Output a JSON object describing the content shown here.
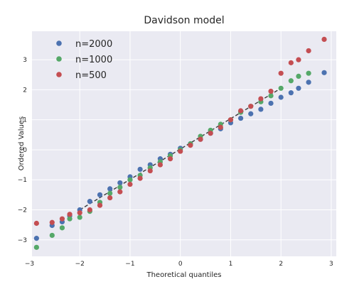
{
  "chart_data": {
    "type": "scatter",
    "title": "Davidson model",
    "xlabel": "Theoretical quantiles",
    "ylabel": "Ordered Values",
    "xlim": [
      -2.95,
      3.1
    ],
    "ylim": [
      -3.55,
      3.95
    ],
    "xticks": [
      -3,
      -2,
      -1,
      0,
      1,
      2,
      3
    ],
    "yticks": [
      -3,
      -2,
      -1,
      0,
      1,
      2,
      3
    ],
    "tick_labels_x": [
      "−3",
      "−2",
      "−1",
      "0",
      "1",
      "2",
      "3"
    ],
    "tick_labels_y": [
      "−3",
      "−2",
      "−1",
      "0",
      "1",
      "2",
      "3"
    ],
    "grid": true,
    "legend_position": "top-left",
    "reference_line": {
      "style": "dashed",
      "color": "#3a3a3a",
      "x": [
        -2.0,
        2.0
      ],
      "y": [
        -2.0,
        2.05
      ]
    },
    "series": [
      {
        "name": "n=2000",
        "color": "#4c72b0",
        "x": [
          -2.86,
          -2.55,
          -2.35,
          -2.2,
          -2.0,
          -1.8,
          -1.6,
          -1.4,
          -1.2,
          -1.0,
          -0.8,
          -0.6,
          -0.4,
          -0.2,
          0.0,
          0.2,
          0.4,
          0.6,
          0.8,
          1.0,
          1.2,
          1.4,
          1.6,
          1.8,
          2.0,
          2.2,
          2.35,
          2.55,
          2.86
        ],
        "y": [
          -2.95,
          -2.52,
          -2.4,
          -2.2,
          -2.0,
          -1.72,
          -1.5,
          -1.3,
          -1.1,
          -0.9,
          -0.65,
          -0.5,
          -0.3,
          -0.15,
          0.05,
          0.2,
          0.35,
          0.55,
          0.7,
          0.9,
          1.05,
          1.2,
          1.35,
          1.55,
          1.75,
          1.9,
          2.05,
          2.25,
          2.57
        ]
      },
      {
        "name": "n=1000",
        "color": "#55a868",
        "x": [
          -2.86,
          -2.55,
          -2.35,
          -2.2,
          -2.0,
          -1.8,
          -1.6,
          -1.4,
          -1.2,
          -1.0,
          -0.8,
          -0.6,
          -0.4,
          -0.2,
          0.0,
          0.2,
          0.4,
          0.6,
          0.8,
          1.0,
          1.2,
          1.4,
          1.6,
          1.8,
          2.0,
          2.2,
          2.35,
          2.55
        ],
        "y": [
          -3.25,
          -2.85,
          -2.6,
          -2.3,
          -2.25,
          -2.05,
          -1.75,
          -1.45,
          -1.25,
          -1.0,
          -0.85,
          -0.6,
          -0.4,
          -0.2,
          0.0,
          0.2,
          0.45,
          0.65,
          0.85,
          1.0,
          1.25,
          1.45,
          1.6,
          1.8,
          2.05,
          2.3,
          2.45,
          2.55
        ]
      },
      {
        "name": "n=500",
        "color": "#c44e52",
        "x": [
          -2.86,
          -2.55,
          -2.35,
          -2.2,
          -2.0,
          -1.8,
          -1.6,
          -1.4,
          -1.2,
          -1.0,
          -0.8,
          -0.6,
          -0.4,
          -0.2,
          0.0,
          0.2,
          0.4,
          0.6,
          0.8,
          1.0,
          1.2,
          1.4,
          1.6,
          1.8,
          2.0,
          2.2,
          2.35,
          2.55,
          2.86
        ],
        "y": [
          -2.45,
          -2.42,
          -2.3,
          -2.15,
          -2.1,
          -2.0,
          -1.85,
          -1.6,
          -1.4,
          -1.15,
          -0.95,
          -0.7,
          -0.5,
          -0.3,
          -0.05,
          0.15,
          0.35,
          0.55,
          0.75,
          1.0,
          1.3,
          1.45,
          1.7,
          1.95,
          2.55,
          2.9,
          3.0,
          3.3,
          3.68
        ]
      }
    ]
  }
}
